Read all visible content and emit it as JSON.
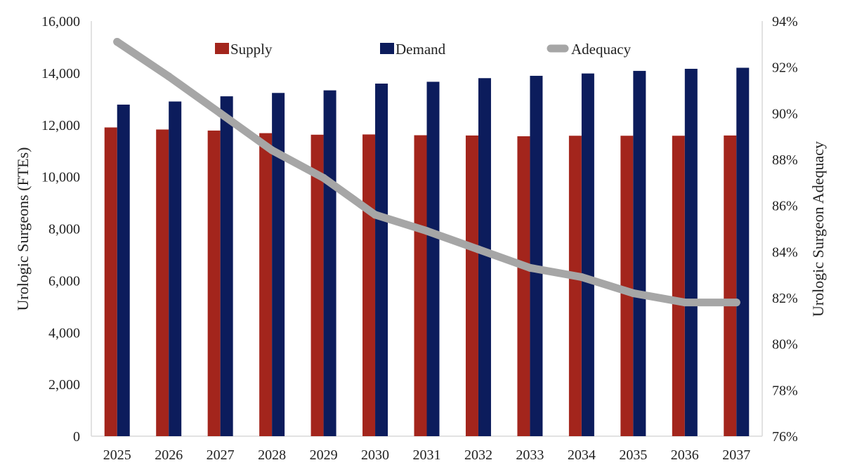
{
  "chart_data": {
    "type": "bar",
    "categories": [
      "2025",
      "2026",
      "2027",
      "2028",
      "2029",
      "2030",
      "2031",
      "2032",
      "2033",
      "2034",
      "2035",
      "2036",
      "2037"
    ],
    "series": [
      {
        "name": "Supply",
        "axis": "left",
        "kind": "bar",
        "color": "#a3251c",
        "values": [
          11900,
          11820,
          11780,
          11680,
          11620,
          11630,
          11600,
          11590,
          11560,
          11580,
          11580,
          11580,
          11590
        ]
      },
      {
        "name": "Demand",
        "axis": "left",
        "kind": "bar",
        "color": "#0c1c5c",
        "values": [
          12780,
          12900,
          13100,
          13230,
          13330,
          13590,
          13660,
          13800,
          13890,
          13980,
          14080,
          14160,
          14200
        ]
      },
      {
        "name": "Adequacy",
        "axis": "right",
        "kind": "line",
        "color": "#a6a6a6",
        "values": [
          0.931,
          0.916,
          0.9,
          0.884,
          0.872,
          0.856,
          0.849,
          0.841,
          0.833,
          0.829,
          0.822,
          0.818,
          0.818
        ]
      }
    ],
    "ylabel": "Urologic Surgeons (FTEs)",
    "y2label": "Urologic Surgeon Adequacy",
    "ylim": [
      0,
      16000
    ],
    "y_ticks": [
      "0",
      "2,000",
      "4,000",
      "6,000",
      "8,000",
      "10,000",
      "12,000",
      "14,000",
      "16,000"
    ],
    "y2lim": [
      0.76,
      0.94
    ],
    "y2_ticks": [
      "76%",
      "78%",
      "80%",
      "82%",
      "84%",
      "86%",
      "88%",
      "90%",
      "92%",
      "94%"
    ],
    "grid": false,
    "legend_position": "top"
  }
}
